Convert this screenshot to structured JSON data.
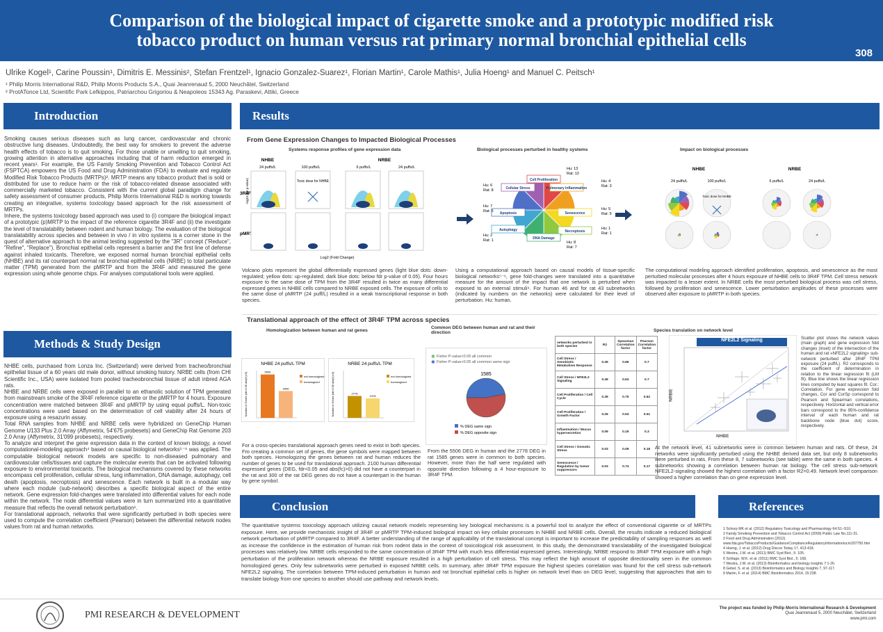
{
  "header": {
    "title_lines": [
      "Comparison of the biological impact of cigarette smoke and a prototypic modified risk",
      "tobacco product on human versus rat primary normal bronchial epithelial cells"
    ],
    "number": "308",
    "authors": "Ulrike Kogel¹, Carine Poussin¹, Dimitris E. Messinis², Stefan Frentzel¹, Ignacio Gonzalez-Suarez¹, Florian Martin¹, Carole Mathis¹, Julia Hoeng¹ and Manuel C. Peitsch¹",
    "affiliations": [
      "¹ Philip Morris International R&D, Philip Morris Products S.A., Quai Jeanrenaud 5, 2000 Neuchâtel, Switzerland",
      "² ProtATonce Ltd, Scientific Park Lefkippos, Patriarchou Grigoriou & Neapoleos 15343 Ag. Paraskevi, Attiki, Greece"
    ]
  },
  "introduction": {
    "heading": "Introduction",
    "paragraphs": [
      "Smoking causes serious diseases such as lung cancer, cardiovascular and chronic obstructive lung diseases. Undoubtedly, the best way for smokers to prevent the adverse health effects of tobacco is to quit smoking. For those unable or unwilling to quit smoking, growing attention in alternative approaches including that of harm reduction emerged in recent years¹. For example, the US Family Smoking Prevention and Tobacco Control Act (FSPTCA) empowers the US Food and Drug Administration (FDA) to evaluate and regulate Modified Risk Tobacco Products (MRTPs)². MRTP means any tobacco product that is sold or distributed for use to reduce harm or the risk of tobacco-related disease associated with commercially marketed tobacco. Consistent with the current global paradigm change for safety assessment of consumer products, Philip Morris International R&D is working towards creating an integrative, systems toxicology based approach for the risk assessment of MRTPs.",
      "Inhere, the systems toxicology based approach was used to (i) compare the biological impact of a prototypic (p)MRTP to the impact of the reference cigarette 3R4F and (ii) the investigate the level of translatability between rodent and human biology. The evaluation of the biological translatability across species and between in vivo / in vitro systems is a corner stone in the quest of alternative approach to the animal testing suggested by the \"3R\" concept (\"Reduce\", \"Refine\", \"Replace\"). Bronchial epithelial cells represent a barrier and the first line of defense against inhaled toxicants. Therefore, we exposed normal human bronchial epithelial cells (NHBE) and its rat counterpart normal rat bronchial epithelial cells (NRBE) to total particulate matter (TPM) generated from the pMRTP and from the 3R4F and measured the gene expression using whole genome chips. For analyses computational tools were applied."
    ]
  },
  "methods": {
    "heading": "Methods & Study Design",
    "paragraphs": [
      "NHBE cells, purchased from Lonza Inc. (Switzerland) were derived from tracheo/bronchial epithelial tissue of a 60 years old male donor, without smoking history. NRBE cells (from CHI Scientific Inc., USA) were isolated from pooled tracheobronchial tissue of adult inbred AGA rats.",
      "NHBE and NRBE cells were exposed in parallel to an ethanolic solution of TPM generated from mainstream smoke of the 3R4F reference cigarette or the pMRTP for 4 hours. Exposure concentration were matched between 3R4F and pMRTP by using equal puffs/L. Non-toxic concentrations were used based on the determination of cell viability after 24 hours of exposure using a resazurin assay.",
      "Total RNA samples from NHBE and NRBE cells were hybridized on GeneChip Human Genome U133 Plus 2.0 Array (Affymetrix, 54'675 probesets) and GeneChip Rat Genome 203 2.0 Array (Affymetrix, 31'099 probesets), respectively.",
      "To analyze and interpret the gene expression data in the context of known biology, a novel computational-modeling approach⁴ based on causal biological networks⁵⁻⁶ was applied. The computable biological network models are specific to non-diseased pulmonary and cardiovascular cells/tissues and capture the molecular events that can be activated following exposure to environmental toxicants. The biological mechanisms covered by these networks encompass cell proliferation, cellular stress, lung inflammation, DNA damage, autophagy, cell death (apoptosis, necroptosis) and senescence. Each network is built in a modular way where each module (sub-network) describes a specific biological aspect of the entire network. Gene expression fold-changes were translated into differential values for each node within the network. The node differential values were in turn summarized into a quantitative measure that reflects the overall network perturbation⁶.",
      "For translational approach, networks that were significantly perturbed in both species were used to compute the correlation coefficient (Pearson) between the differential network nodes values from rat and human networks."
    ]
  },
  "results": {
    "heading": "Results",
    "section1": {
      "title": "From Gene Expression Changes to Impacted Biological Processes",
      "panels": [
        "Systems response profiles of gene expression data",
        "Biological processes perturbed in healthy systems",
        "Impact on biological processes"
      ],
      "volcano": {
        "nhbe": "NHBE",
        "nrbe": "NRBE",
        "doses": [
          "24 puffs/L",
          "100 puffs/L",
          "6 puffs/L",
          "24 puffs/L"
        ],
        "rows": [
          "3R4F",
          "pMRTP"
        ],
        "toxic": "Toxic dose for NHBE",
        "xlabel": "Log2 (Fold Change)",
        "ylabel": "-log10 (fdr p-value)"
      },
      "nodes": [
        {
          "label": "Cell Proliferation",
          "hu": "Hu: 13",
          "rat": "Rat: 13"
        },
        {
          "label": "Pulmonary Inflammation",
          "hu": "Hu: 4",
          "rat": "Rat: 3"
        },
        {
          "label": "Senescence",
          "hu": "Hu: 5",
          "rat": "Rat: 5"
        },
        {
          "label": "Necroptosis",
          "hu": "Hu: 1",
          "rat": "Rat: 1"
        },
        {
          "label": "DNA Damage",
          "hu": "Hu: 8",
          "rat": "Rat: 7"
        },
        {
          "label": "Autophagy",
          "hu": "Hu: 2",
          "rat": "Rat: 1"
        },
        {
          "label": "Apoptosis",
          "hu": "Hu: 7",
          "rat": "Rat: 5"
        },
        {
          "label": "Cellular Stress",
          "hu": "Hu: 6",
          "rat": "Rat: 8"
        }
      ],
      "impact": {
        "nhbe": "NHBE",
        "nrbe": "NRBE",
        "doses": [
          "24 puffs/L",
          "100 puffs/L",
          "6 puffs/L",
          "24 puffs/L"
        ],
        "rows": [
          "3R4F",
          "pMRTP"
        ],
        "toxic": "Toxic dose for NHBE"
      },
      "captions": [
        "Volcano plots represent the global differentially expressed genes (light blue dots: down-regulated; yellow dots: up-regulated; dark blue dots: below fdr p-value of 0.05). Four hours exposure to the same dose of TPM from the 3R4F resulted in twice as many differential expressed genes in NHBE cells compared to NRBE exposed cells. The exposure of cells to the same dose of pMRTP (24 puff/L) resulted in a weak transcriptional response in both species.",
        "Using a computational approach based on causal models of tissue-specific biological networks⁵⁻⁶, gene fold-changes were translated into a quantitative measure for the amount of the impact that one network is perturbed when exposed to an external stimuli⁹. For human 46 and for rat 43 subnetworks (indicated by numbers on the networks) were calculated for their level of perturbation. Hu: human.",
        "The computational modeling approach identified proliferation, apoptosis, and senescence as the most perturbed molecular processes after 4 hours exposure of NHBE cells to 3R4F TPM. Cell stress network was impacted to a lesser extent. In NRBE cells the most perturbed biological process was cell stress, followed by proliferation and senescence. Lower perturbation amplitudes of these processes were observed after exposure to pMRTP in both species."
      ]
    },
    "section2": {
      "title": "Translational approach of the effect of 3R4F TPM across species",
      "panels": [
        "Homologization between human and rat genes",
        "Common DEG between human and rat and their direction",
        "Species translation on network level"
      ],
      "scatter": {
        "title": "NFE2L2 Signaling",
        "xlabel": "NHBE",
        "ylabel": "NRBE"
      },
      "table": {
        "header": [
          "networks perturbed in both species",
          "R2",
          "Spearman Correlation factor",
          "Pearson Correlation factor"
        ],
        "rows": [
          [
            "Cell Stress / Xenobiotic Metabolism Response",
            0.49,
            0.66,
            0.7
          ],
          [
            "Cell Stress / NFE2L2 Signaling",
            0.49,
            0.63,
            0.7
          ],
          [
            "Cell Proliferation / Cell Cycle",
            0.39,
            0.75,
            0.62
          ],
          [
            "Cell Proliferation / Growth Factor",
            0.26,
            0.53,
            0.51
          ],
          [
            "Inflammation / Mucus hypersecretion",
            0.09,
            0.19,
            0.3
          ],
          [
            "Cell Stress / Osmotic Stress",
            0.03,
            0.09,
            0.18
          ],
          [
            "Senescence / Regulation by tumor suppressors",
            0.03,
            0.74,
            0.17
          ]
        ]
      },
      "captions": [
        "For a cross-species translational approach genes need to exist in both species. Fro creating a common set of genes, the gene symbols were mapped between both species. Homologizing the genes between rat and human reduces the number of genes to be used for translational approach. 2100 human differential expressed genes (DEG, fdr<0.05 and abs(fc)>0) did not have a counterpart in the rat and 300 of the rat DEG genes do not have a counterpart in the human by gene symbol.",
        "From the 5506 DEG in human and the 2778 DEG in rat 1585 genes were in common to both species. However, more than the half were regulated with opposite direction following a 4 hour-exposure to 3R4F TPM.",
        "Scatter plot shows the network values (main graph) and gene expression fold changes (inset) of the intersection of the human and rat «NFE2L2 signaling» sub-network perturbed after 3R4F TPM exposure (24 puff/L). R2 corresponds to the coefficient of determination in relation to the linear regression fit (LM fit). Blue line shows the linear regression lines computed by least squares fit. Cor.: Correlation. For gene expression fold changes, Cor and CorSp correspond to Pearson and Spearman correlations, respectively. Horizontal and vertical error bars correspond to the 95%-confidence interval of each human and rat backbone node (blue dot) score, respectively.",
        "At the network level, 41 subnetworks were in common between human and rats. Of these, 24 networks were significantly perturbed using the NHBE derived data set, but only 8 subnetworks were perturbed in rats. From these 8, 7 subnetworks (see table) were the same in both species. 4 subnetworks showing a correlation between human rat biology. The cell stress sub-network NFE2L2-signaling showed the highest correlation with a factor R2=0.49. Network level comparison showed a higher correlation than on gene expression level."
      ]
    }
  },
  "chart_data": [
    {
      "type": "bar",
      "title": "NHBE 24 puffs/L TPM",
      "ylabel": "Number of Genes (fdr<0.05 abs(fc)>0)",
      "ylim": [
        0,
        6000
      ],
      "series": [
        {
          "name": "not homologized",
          "color": "#e87722",
          "values": [
            5506
          ]
        },
        {
          "name": "homologized",
          "color": "#f6b47c",
          "values": [
            3406
          ]
        }
      ]
    },
    {
      "type": "bar",
      "title": "NRBE 24 puffs/L TPM",
      "ylabel": "Number of Genes (fdr<0.05 abs(fc)>0)",
      "ylim": [
        0,
        6000
      ],
      "series": [
        {
          "name": "not homologized",
          "color": "#c39200",
          "values": [
            2778
          ]
        },
        {
          "name": "homologized",
          "color": "#f7d66f",
          "values": [
            2478
          ]
        }
      ]
    },
    {
      "type": "pie",
      "legend_top": [
        {
          "name": "Fisher P-value<0.05 all common",
          "color": "#5cb85c"
        },
        {
          "name": "Fisher P-value<0.05 all common same sign",
          "color": "#3a5fcd"
        }
      ],
      "annotation": "1585",
      "categories": [
        "% DEG same sign",
        "% DEG opposite sign"
      ],
      "values": [
        47,
        53
      ],
      "colors": [
        "#4472c4",
        "#c0504d"
      ]
    }
  ],
  "conclusion": {
    "heading": "Conclusion",
    "text": "The quantitative systems toxicology approach utilizing causal network models representing key biological mechanisms is a powerful tool to analyze the effect of conventional cigarette or of MRTPs exposure. Here, we provide mechanistic insight of 3R4F or pMRTP TPM-induced biological impact on key cellular processes in NHBE and NRBE cells. Overall, the results indicate a reduced biological network perturbation of pMRTP compared to 3R4F. A better understanding of the range of applicability of the translational concept is important to increase the predictability of sampling responses as well as increase the confidence in the estimation of human risk from rodent data in the context of toxicological risk assessment. In this study, the demonstrated translatability of the investigated biological processes was relatively low. NRBE cells responded to the same concentration of 3R4F TPM with much less differential expressed genes. Interestingly, NRBE respond to 3R4F TPM exposure with a high perturbation of the proliferation network whereas the NRBE exposure resulted in a high perturbation of cell stress. This may reflect the high amount of opposite directionality seen in the common homologized genes. Only few subnetworks were perturbed in exposed NRBE cells. In summary, after 3R4F TPM exposure the highest species correlation was found for the cell stress sub-network NFE2L2 signaling. The correlation between TPM-induced perturbation in human and rat bronchial epithelial cells is higher on network level than on DEG level, suggesting that approaches that aim to translate biology from one species to another should use pathway and network levels."
  },
  "references": {
    "heading": "References",
    "items": [
      "1 Schorp MK et al. (2012) Regulatory Toxicology and Pharmacology 64:S1–S10.",
      "2 Family Smoking Prevention and Tobacco Control Act (2009) Public Law No.111-31.",
      "3 Food and Drug Administration (2012). www.fda.gov/TobaccoProducts/GuidanceComplianceRegulatoryInformation/ucm297750.htm",
      "4 Hoeng, J. et al. (2012) Drug Discov Today 17, 413-418.",
      "5 Westra, J.W. et al. (2011) BMC Syst Biol., 5: 105.",
      "6 Schlage, W.K. et al. (2011) BMC Syst Biol., 5: 168.",
      "7 Westra, J.W. et al. (2013) Bioinformatics and biology insights 7:1-26.",
      "8 Gebel, S. et al. (2013) Bioinformatics and Biology Insights 7, 97-117.",
      "9 Martin, F. et al. (2014) BMC Bioinformatics 2014, 15:238."
    ]
  },
  "footer": {
    "brand": "PMI RESEARCH & DEVELOPMENT",
    "funding": "The project was funded by Philip Morris International Research & Development",
    "address": "Quai Jeanrenaud 5, 2000 Neuchâtel, Switzerland",
    "web": "www.pmi.com"
  }
}
